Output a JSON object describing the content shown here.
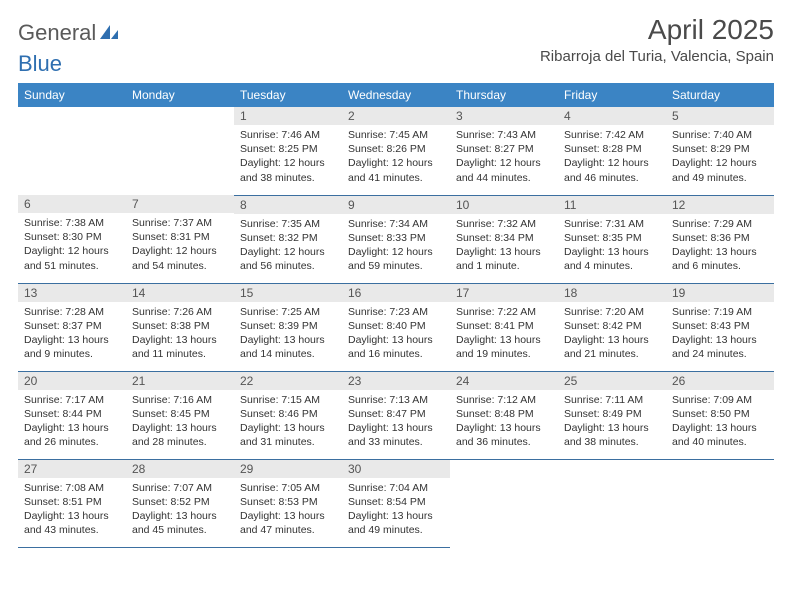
{
  "brand": {
    "part1": "General",
    "part2": "Blue"
  },
  "title": "April 2025",
  "location": "Ribarroja del Turia, Valencia, Spain",
  "calendar": {
    "type": "table",
    "header_bg": "#3b84c4",
    "header_fg": "#ffffff",
    "daynum_bg": "#e9e9e9",
    "rule_color": "#3b6fa0",
    "body_font_size_pt": 8,
    "header_font_size_pt": 9,
    "columns": [
      "Sunday",
      "Monday",
      "Tuesday",
      "Wednesday",
      "Thursday",
      "Friday",
      "Saturday"
    ],
    "weeks": [
      [
        null,
        null,
        {
          "n": "1",
          "sr": "7:46 AM",
          "ss": "8:25 PM",
          "dl": "12 hours and 38 minutes."
        },
        {
          "n": "2",
          "sr": "7:45 AM",
          "ss": "8:26 PM",
          "dl": "12 hours and 41 minutes."
        },
        {
          "n": "3",
          "sr": "7:43 AM",
          "ss": "8:27 PM",
          "dl": "12 hours and 44 minutes."
        },
        {
          "n": "4",
          "sr": "7:42 AM",
          "ss": "8:28 PM",
          "dl": "12 hours and 46 minutes."
        },
        {
          "n": "5",
          "sr": "7:40 AM",
          "ss": "8:29 PM",
          "dl": "12 hours and 49 minutes."
        }
      ],
      [
        {
          "n": "6",
          "sr": "7:38 AM",
          "ss": "8:30 PM",
          "dl": "12 hours and 51 minutes."
        },
        {
          "n": "7",
          "sr": "7:37 AM",
          "ss": "8:31 PM",
          "dl": "12 hours and 54 minutes."
        },
        {
          "n": "8",
          "sr": "7:35 AM",
          "ss": "8:32 PM",
          "dl": "12 hours and 56 minutes."
        },
        {
          "n": "9",
          "sr": "7:34 AM",
          "ss": "8:33 PM",
          "dl": "12 hours and 59 minutes."
        },
        {
          "n": "10",
          "sr": "7:32 AM",
          "ss": "8:34 PM",
          "dl": "13 hours and 1 minute."
        },
        {
          "n": "11",
          "sr": "7:31 AM",
          "ss": "8:35 PM",
          "dl": "13 hours and 4 minutes."
        },
        {
          "n": "12",
          "sr": "7:29 AM",
          "ss": "8:36 PM",
          "dl": "13 hours and 6 minutes."
        }
      ],
      [
        {
          "n": "13",
          "sr": "7:28 AM",
          "ss": "8:37 PM",
          "dl": "13 hours and 9 minutes."
        },
        {
          "n": "14",
          "sr": "7:26 AM",
          "ss": "8:38 PM",
          "dl": "13 hours and 11 minutes."
        },
        {
          "n": "15",
          "sr": "7:25 AM",
          "ss": "8:39 PM",
          "dl": "13 hours and 14 minutes."
        },
        {
          "n": "16",
          "sr": "7:23 AM",
          "ss": "8:40 PM",
          "dl": "13 hours and 16 minutes."
        },
        {
          "n": "17",
          "sr": "7:22 AM",
          "ss": "8:41 PM",
          "dl": "13 hours and 19 minutes."
        },
        {
          "n": "18",
          "sr": "7:20 AM",
          "ss": "8:42 PM",
          "dl": "13 hours and 21 minutes."
        },
        {
          "n": "19",
          "sr": "7:19 AM",
          "ss": "8:43 PM",
          "dl": "13 hours and 24 minutes."
        }
      ],
      [
        {
          "n": "20",
          "sr": "7:17 AM",
          "ss": "8:44 PM",
          "dl": "13 hours and 26 minutes."
        },
        {
          "n": "21",
          "sr": "7:16 AM",
          "ss": "8:45 PM",
          "dl": "13 hours and 28 minutes."
        },
        {
          "n": "22",
          "sr": "7:15 AM",
          "ss": "8:46 PM",
          "dl": "13 hours and 31 minutes."
        },
        {
          "n": "23",
          "sr": "7:13 AM",
          "ss": "8:47 PM",
          "dl": "13 hours and 33 minutes."
        },
        {
          "n": "24",
          "sr": "7:12 AM",
          "ss": "8:48 PM",
          "dl": "13 hours and 36 minutes."
        },
        {
          "n": "25",
          "sr": "7:11 AM",
          "ss": "8:49 PM",
          "dl": "13 hours and 38 minutes."
        },
        {
          "n": "26",
          "sr": "7:09 AM",
          "ss": "8:50 PM",
          "dl": "13 hours and 40 minutes."
        }
      ],
      [
        {
          "n": "27",
          "sr": "7:08 AM",
          "ss": "8:51 PM",
          "dl": "13 hours and 43 minutes."
        },
        {
          "n": "28",
          "sr": "7:07 AM",
          "ss": "8:52 PM",
          "dl": "13 hours and 45 minutes."
        },
        {
          "n": "29",
          "sr": "7:05 AM",
          "ss": "8:53 PM",
          "dl": "13 hours and 47 minutes."
        },
        {
          "n": "30",
          "sr": "7:04 AM",
          "ss": "8:54 PM",
          "dl": "13 hours and 49 minutes."
        },
        null,
        null,
        null
      ]
    ],
    "labels": {
      "sunrise": "Sunrise: ",
      "sunset": "Sunset: ",
      "daylight": "Daylight: "
    }
  }
}
